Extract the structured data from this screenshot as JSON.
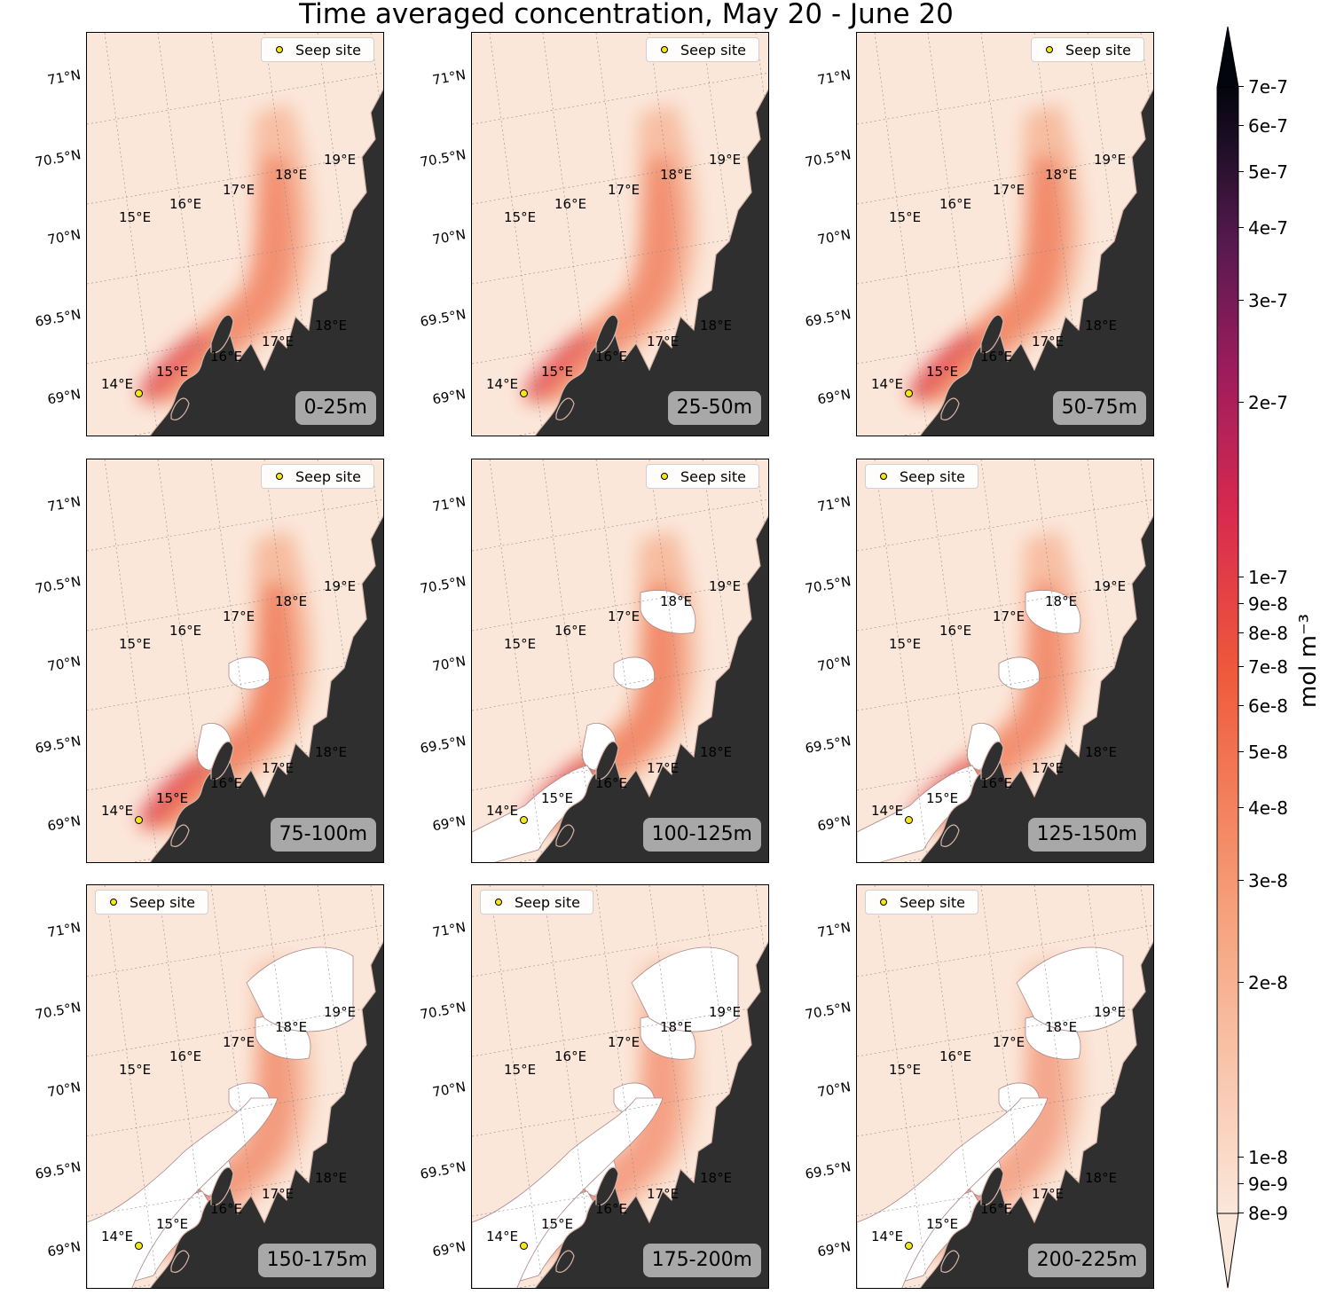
{
  "title": "Time averaged concentration, May 20 - June 20",
  "legend_label": "Seep site",
  "lat_labels": [
    "71°N",
    "70.5°N",
    "70°N",
    "69.5°N",
    "69°N"
  ],
  "lon_labels_top": [
    "15°E",
    "16°E",
    "17°E",
    "18°E",
    "19°E"
  ],
  "lon_labels_bottom": [
    "14°E",
    "15°E",
    "16°E",
    "17°E",
    "18°E"
  ],
  "panels": [
    {
      "depth": "0-25m",
      "plume_strength": 0.55,
      "land_level": 0
    },
    {
      "depth": "25-50m",
      "plume_strength": 0.55,
      "land_level": 0
    },
    {
      "depth": "50-75m",
      "plume_strength": 0.6,
      "land_level": 0
    },
    {
      "depth": "75-100m",
      "plume_strength": 0.62,
      "land_level": 1
    },
    {
      "depth": "100-125m",
      "plume_strength": 0.6,
      "land_level": 2
    },
    {
      "depth": "125-150m",
      "plume_strength": 0.55,
      "land_level": 2
    },
    {
      "depth": "150-175m",
      "plume_strength": 0.45,
      "land_level": 3
    },
    {
      "depth": "175-200m",
      "plume_strength": 0.4,
      "land_level": 3
    },
    {
      "depth": "200-225m",
      "plume_strength": 0.35,
      "land_level": 3
    }
  ],
  "colorbar": {
    "label": "mol m⁻³",
    "ticks": [
      "7e-7",
      "6e-7",
      "5e-7",
      "4e-7",
      "3e-7",
      "2e-7",
      "1e-7",
      "9e-8",
      "8e-8",
      "7e-8",
      "6e-8",
      "5e-8",
      "4e-8",
      "3e-8",
      "2e-8",
      "1e-8",
      "9e-9",
      "8e-9"
    ],
    "scale": "log",
    "min": "8e-9",
    "max": "7e-7",
    "extend": "both",
    "colors": [
      "#fbe7da",
      "#f6a37d",
      "#ef5a3b",
      "#d92a4f",
      "#9c1c5d",
      "#571a4f",
      "#1d0e25",
      "#03050e"
    ]
  }
}
